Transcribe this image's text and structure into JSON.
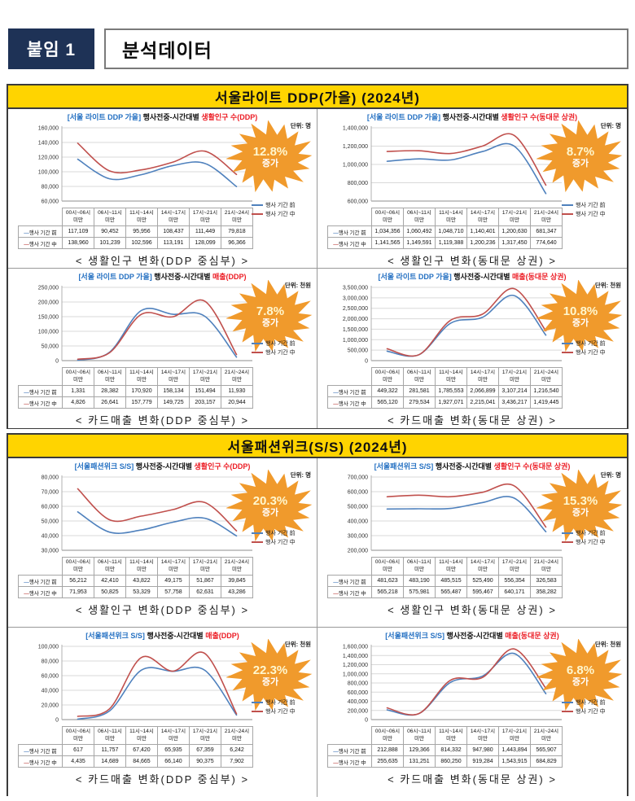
{
  "page": {
    "attachment_tag": "붙임 1",
    "doc_title": "분석데이터"
  },
  "legend_labels": {
    "before": "행사 기간 前",
    "during": "행사 기간 中"
  },
  "colors": {
    "before_line": "#4F81BD",
    "during_line": "#C0504D",
    "badge": "#F09A2C",
    "banner_bg": "#FFD400",
    "tag_bg": "#1E3256",
    "title_blue": "#2470C2",
    "title_red": "#EC1C24"
  },
  "categories": [
    "00시~06시 미만",
    "06시~11시 미만",
    "11시~14시 미만",
    "14시~17시 미만",
    "17시~21시 미만",
    "21시~24시 미만"
  ],
  "sections": [
    {
      "banner": "서울라이트  DDP(가을)  (2024년)",
      "panels": [
        {
          "title_prefix": "[서울 라이트 DDP 가을]",
          "title_mid": "행사전중-시간대별",
          "title_highlight": "생활인구 수(DDP)",
          "unit": "단위: 명",
          "badge_pct": "12.8%",
          "badge_label": "증가",
          "caption": "< 생활인구 변화(DDP 중심부) >",
          "chart_data": {
            "type": "line",
            "ylim": [
              60000,
              160000
            ],
            "y_step": 20000,
            "grid": true,
            "legend_position": "right",
            "categories": [
              "00시~06시 미만",
              "06시~11시 미만",
              "11시~14시 미만",
              "14시~17시 미만",
              "17시~21시 미만",
              "21시~24시 미만"
            ],
            "series": [
              {
                "name": "행사 기간 前",
                "values": [
                  117109,
                  90452,
                  95956,
                  108437,
                  111449,
                  79818
                ]
              },
              {
                "name": "행사 기간 中",
                "values": [
                  138960,
                  101239,
                  102596,
                  113191,
                  128099,
                  96366
                ]
              }
            ]
          }
        },
        {
          "title_prefix": "[서울 라이트 DDP 가을]",
          "title_mid": "행사전중-시간대별",
          "title_highlight": "생활인구 수(동대문 상권)",
          "unit": "단위: 명",
          "badge_pct": "8.7%",
          "badge_label": "증가",
          "caption": "< 생활인구 변화(동대문 상권) >",
          "chart_data": {
            "type": "line",
            "ylim": [
              600000,
              1400000
            ],
            "y_step": 200000,
            "grid": true,
            "legend_position": "right",
            "categories": [
              "00시~06시 미만",
              "06시~11시 미만",
              "11시~14시 미만",
              "14시~17시 미만",
              "17시~21시 미만",
              "21시~24시 미만"
            ],
            "series": [
              {
                "name": "행사 기간 前",
                "values": [
                  1034356,
                  1060492,
                  1048710,
                  1140401,
                  1200630,
                  681347
                ]
              },
              {
                "name": "행사 기간 中",
                "values": [
                  1141565,
                  1149591,
                  1119388,
                  1200236,
                  1317450,
                  774640
                ]
              }
            ]
          }
        },
        {
          "title_prefix": "[서울 라이트 DDP 가을]",
          "title_mid": "행사전중-시간대별",
          "title_highlight": "매출(DDP)",
          "unit": "단위: 천원",
          "badge_pct": "7.8%",
          "badge_label": "증가",
          "caption": "< 카드매출 변화(DDP 중심부) >",
          "chart_data": {
            "type": "line",
            "ylim": [
              0,
              250000
            ],
            "y_step": 50000,
            "grid": true,
            "legend_position": "right",
            "categories": [
              "00시~06시 미만",
              "06시~11시 미만",
              "11시~14시 미만",
              "14시~17시 미만",
              "17시~21시 미만",
              "21시~24시 미만"
            ],
            "series": [
              {
                "name": "행사 기간 前",
                "values": [
                  1331,
                  28382,
                  170920,
                  158134,
                  151494,
                  11930
                ]
              },
              {
                "name": "행사 기간 中",
                "values": [
                  4826,
                  26641,
                  157779,
                  149725,
                  203157,
                  20944
                ]
              }
            ]
          }
        },
        {
          "title_prefix": "[서울 라이트 DDP 가을]",
          "title_mid": "행사전중-시간대별",
          "title_highlight": "매출(동대문 상권)",
          "unit": "단위: 천원",
          "badge_pct": "10.8%",
          "badge_label": "증가",
          "caption": "< 카드매출 변화(동대문 상권) >",
          "chart_data": {
            "type": "line",
            "ylim": [
              0,
              3500000
            ],
            "y_step": 500000,
            "grid": true,
            "legend_position": "right",
            "categories": [
              "00시~06시 미만",
              "06시~11시 미만",
              "11시~14시 미만",
              "14시~17시 미만",
              "17시~21시 미만",
              "21시~24시 미만"
            ],
            "series": [
              {
                "name": "행사 기간 前",
                "values": [
                  449322,
                  281581,
                  1785553,
                  2066899,
                  3107214,
                  1216540
                ]
              },
              {
                "name": "행사 기간 中",
                "values": [
                  565120,
                  279534,
                  1927071,
                  2215041,
                  3436217,
                  1419445
                ]
              }
            ]
          }
        }
      ]
    },
    {
      "banner": "서울패션위크(S/S)  (2024년)",
      "panels": [
        {
          "title_prefix": "[서울패션위크 S/S]",
          "title_mid": "행사전중-시간대별",
          "title_highlight": "생활인구 수(DDP)",
          "unit": "단위: 명",
          "badge_pct": "20.3%",
          "badge_label": "증가",
          "caption": "< 생활인구 변화(DDP 중심부) >",
          "chart_data": {
            "type": "line",
            "ylim": [
              30000,
              80000
            ],
            "y_step": 10000,
            "grid": true,
            "legend_position": "right",
            "categories": [
              "00시~06시 미만",
              "06시~11시 미만",
              "11시~14시 미만",
              "14시~17시 미만",
              "17시~21시 미만",
              "21시~24시 미만"
            ],
            "series": [
              {
                "name": "행사 기간 前",
                "values": [
                  56212,
                  42410,
                  43822,
                  49175,
                  51867,
                  39845
                ]
              },
              {
                "name": "행사 기간 中",
                "values": [
                  71953,
                  50825,
                  53329,
                  57758,
                  62631,
                  43286
                ]
              }
            ]
          }
        },
        {
          "title_prefix": "[서울패션위크 S/S]",
          "title_mid": "행사전중-시간대별",
          "title_highlight": "생활인구 수(동대문 상권)",
          "unit": "단위: 명",
          "badge_pct": "15.3%",
          "badge_label": "증가",
          "caption": "< 생활인구 변화(동대문 상권) >",
          "chart_data": {
            "type": "line",
            "ylim": [
              200000,
              700000
            ],
            "y_step": 100000,
            "grid": true,
            "legend_position": "right",
            "categories": [
              "00시~06시 미만",
              "06시~11시 미만",
              "11시~14시 미만",
              "14시~17시 미만",
              "17시~21시 미만",
              "21시~24시 미만"
            ],
            "series": [
              {
                "name": "행사 기간 前",
                "values": [
                  481623,
                  483190,
                  485515,
                  525490,
                  556354,
                  326583
                ]
              },
              {
                "name": "행사 기간 中",
                "values": [
                  565218,
                  575981,
                  565487,
                  595467,
                  640171,
                  358282
                ]
              }
            ]
          }
        },
        {
          "title_prefix": "[서울패션위크 S/S]",
          "title_mid": "행사전중-시간대별",
          "title_highlight": "매출(DDP)",
          "unit": "단위: 천원",
          "badge_pct": "22.3%",
          "badge_label": "증가",
          "caption": "< 카드매출 변화(DDP 중심부) >",
          "chart_data": {
            "type": "line",
            "ylim": [
              0,
              100000
            ],
            "y_step": 20000,
            "grid": true,
            "legend_position": "right",
            "categories": [
              "00시~06시 미만",
              "06시~11시 미만",
              "11시~14시 미만",
              "14시~17시 미만",
              "17시~21시 미만",
              "21시~24시 미만"
            ],
            "series": [
              {
                "name": "행사 기간 前",
                "values": [
                  617,
                  11757,
                  67420,
                  65935,
                  67359,
                  6242
                ]
              },
              {
                "name": "행사 기간 中",
                "values": [
                  4435,
                  14689,
                  84665,
                  66140,
                  90375,
                  7902
                ]
              }
            ]
          }
        },
        {
          "title_prefix": "[서울패션위크 S/S]",
          "title_mid": "행사전중-시간대별",
          "title_highlight": "매출(동대문 상권)",
          "unit": "단위: 천원",
          "badge_pct": "6.8%",
          "badge_label": "증가",
          "caption": "< 카드매출 변화(동대문 상권) >",
          "chart_data": {
            "type": "line",
            "ylim": [
              0,
              1600000
            ],
            "y_step": 200000,
            "grid": true,
            "legend_position": "right",
            "categories": [
              "00시~06시 미만",
              "06시~11시 미만",
              "11시~14시 미만",
              "14시~17시 미만",
              "17시~21시 미만",
              "21시~24시 미만"
            ],
            "series": [
              {
                "name": "행사 기간 前",
                "values": [
                  212888,
                  129366,
                  814332,
                  947980,
                  1443894,
                  565907
                ]
              },
              {
                "name": "행사 기간 中",
                "values": [
                  255635,
                  131251,
                  860250,
                  919284,
                  1543915,
                  684829
                ]
              }
            ]
          }
        }
      ]
    }
  ]
}
